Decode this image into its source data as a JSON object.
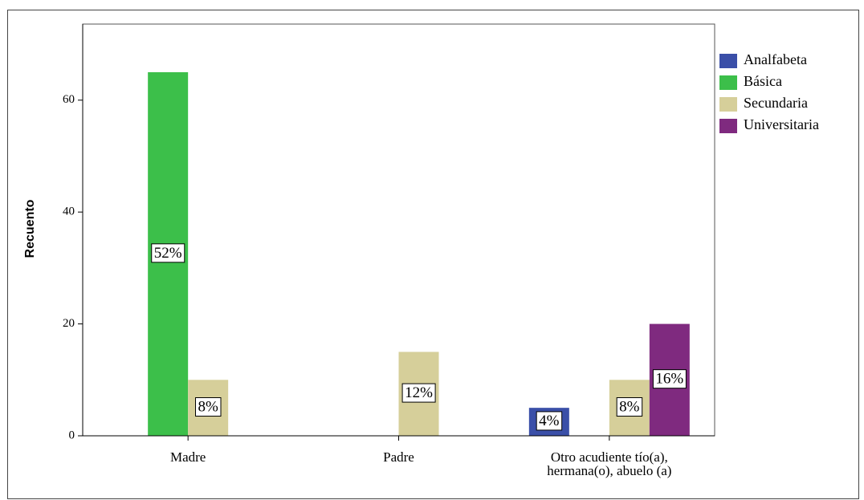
{
  "chart_data": {
    "type": "bar",
    "y_label": "Recuento",
    "categories": [
      "Madre",
      "Padre",
      "Otro acudiente tío(a), hermana(o), abuelo (a)"
    ],
    "series": [
      {
        "name": "Analfabeta",
        "color": "#3a4fa8",
        "values": [
          null,
          null,
          5
        ],
        "percent_labels": [
          null,
          null,
          "4%"
        ]
      },
      {
        "name": "Básica",
        "color": "#3cbf4a",
        "values": [
          65,
          null,
          null
        ],
        "percent_labels": [
          "52%",
          null,
          null
        ]
      },
      {
        "name": "Secundaria",
        "color": "#d6cf9a",
        "values": [
          10,
          15,
          10
        ],
        "percent_labels": [
          "8%",
          "12%",
          "8%"
        ]
      },
      {
        "name": "Universitaria",
        "color": "#7f2a7f",
        "values": [
          null,
          null,
          20
        ],
        "percent_labels": [
          null,
          null,
          "16%"
        ]
      }
    ],
    "ylim": [
      0,
      73.6
    ],
    "yticks": [
      0,
      20,
      40,
      60
    ],
    "legend": "right"
  }
}
